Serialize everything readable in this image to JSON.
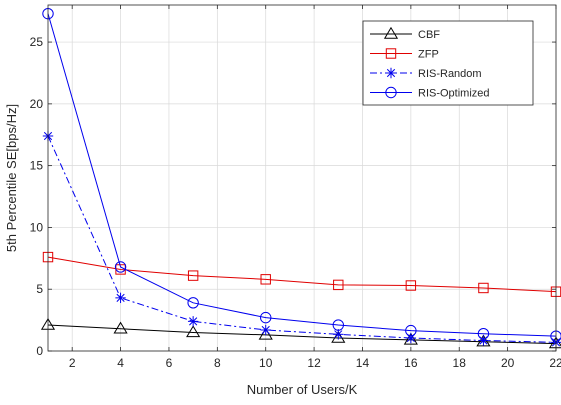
{
  "chart_data": {
    "type": "line",
    "title": "",
    "xlabel": "Number of Users/K",
    "ylabel": "5th Percentile SE[bps/Hz]",
    "xlim": [
      1,
      22
    ],
    "ylim": [
      0,
      28
    ],
    "xticks": [
      2,
      4,
      6,
      8,
      10,
      12,
      14,
      16,
      18,
      20,
      22
    ],
    "yticks": [
      0,
      5,
      10,
      15,
      20,
      25
    ],
    "grid": true,
    "legend_position": "top-right",
    "x": [
      1,
      4,
      7,
      10,
      13,
      16,
      19,
      22
    ],
    "series": [
      {
        "name": "CBF",
        "color": "#000000",
        "line_style": "solid",
        "marker": "triangle",
        "values": [
          2.1,
          1.8,
          1.5,
          1.3,
          1.05,
          0.9,
          0.75,
          0.6
        ]
      },
      {
        "name": "ZFP",
        "color": "#e00000",
        "line_style": "solid",
        "marker": "square",
        "values": [
          7.6,
          6.6,
          6.1,
          5.8,
          5.35,
          5.3,
          5.1,
          4.8
        ]
      },
      {
        "name": "RIS-Random",
        "color": "#0000ee",
        "line_style": "dashdot",
        "marker": "star",
        "values": [
          17.4,
          4.3,
          2.4,
          1.7,
          1.35,
          1.05,
          0.85,
          0.7
        ]
      },
      {
        "name": "RIS-Optimized",
        "color": "#0000ee",
        "line_style": "solid",
        "marker": "circle",
        "values": [
          27.3,
          6.8,
          3.9,
          2.7,
          2.1,
          1.65,
          1.4,
          1.2
        ]
      }
    ]
  }
}
